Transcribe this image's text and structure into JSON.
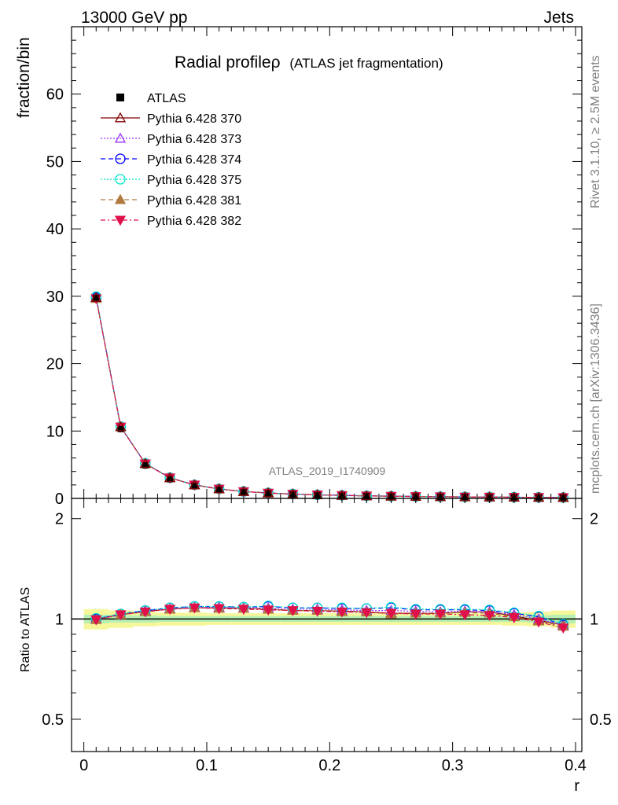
{
  "header": {
    "left": "13000 GeV pp",
    "right": "Jets"
  },
  "side_labels": {
    "rivet": "Rivet 3.1.10, ≥ 2.5M events",
    "mcplots": "mcplots.cern.ch [arXiv:1306.3436]"
  },
  "watermark": "ATLAS_2019_I1740909",
  "chart_data": [
    {
      "type": "line",
      "title_main": "Radial profileρ",
      "title_sub": "(ATLAS jet fragmentation)",
      "ylabel": "fraction/bin",
      "ylim": [
        0,
        70
      ],
      "yticks": [
        0,
        10,
        20,
        30,
        40,
        50,
        60
      ],
      "xlim": [
        -0.01,
        0.4
      ],
      "x": [
        0.01,
        0.03,
        0.05,
        0.07,
        0.09,
        0.11,
        0.13,
        0.15,
        0.17,
        0.19,
        0.21,
        0.23,
        0.25,
        0.27,
        0.29,
        0.31,
        0.33,
        0.35,
        0.37,
        0.39
      ],
      "atlas": [
        29.8,
        10.3,
        4.9,
        2.85,
        1.85,
        1.3,
        0.95,
        0.75,
        0.6,
        0.5,
        0.42,
        0.36,
        0.31,
        0.27,
        0.24,
        0.21,
        0.19,
        0.17,
        0.15,
        0.14
      ],
      "legend": {
        "position": "top-left",
        "entries": [
          {
            "name": "ATLAS",
            "color": "#000000",
            "marker": "square-filled",
            "dash": "none"
          },
          {
            "name": "Pythia 6.428 370",
            "color": "#800000",
            "marker": "triangle-up-open",
            "dash": "solid"
          },
          {
            "name": "Pythia 6.428 373",
            "color": "#9933ff",
            "marker": "triangle-up-open",
            "dash": "dotted"
          },
          {
            "name": "Pythia 6.428 374",
            "color": "#0000ff",
            "marker": "circle-open",
            "dash": "dashed"
          },
          {
            "name": "Pythia 6.428 375",
            "color": "#00e5c8",
            "marker": "circle-open",
            "dash": "dotted"
          },
          {
            "name": "Pythia 6.428 381",
            "color": "#b07a40",
            "marker": "triangle-up-filled",
            "dash": "dashed"
          },
          {
            "name": "Pythia 6.428 382",
            "color": "#e0104a",
            "marker": "triangle-down-filled",
            "dash": "dashdot"
          }
        ]
      }
    },
    {
      "type": "line",
      "ylabel": "Ratio to ATLAS",
      "xlabel": "r",
      "ylim": [
        0.4,
        2.3
      ],
      "yticks": [
        0.5,
        1,
        2
      ],
      "ytick_labels": [
        "0.5",
        "1",
        "2"
      ],
      "xlim": [
        -0.01,
        0.4
      ],
      "xticks": [
        0,
        0.1,
        0.2,
        0.3,
        0.4
      ],
      "xtick_labels": [
        "0",
        "0.1",
        "0.2",
        "0.3",
        "0.4"
      ],
      "x": [
        0.01,
        0.03,
        0.05,
        0.07,
        0.09,
        0.11,
        0.13,
        0.15,
        0.17,
        0.19,
        0.21,
        0.23,
        0.25,
        0.27,
        0.29,
        0.31,
        0.33,
        0.35,
        0.37,
        0.39
      ],
      "band_stat": [
        0.03,
        0.025,
        0.025,
        0.02,
        0.02,
        0.02,
        0.02,
        0.02,
        0.02,
        0.02,
        0.02,
        0.02,
        0.02,
        0.02,
        0.02,
        0.02,
        0.02,
        0.02,
        0.025,
        0.03
      ],
      "band_total": [
        0.07,
        0.06,
        0.05,
        0.045,
        0.045,
        0.04,
        0.04,
        0.04,
        0.04,
        0.04,
        0.04,
        0.04,
        0.04,
        0.04,
        0.04,
        0.04,
        0.04,
        0.045,
        0.05,
        0.06
      ],
      "series": [
        {
          "name": "Pythia 6.428 370",
          "values": [
            1.0,
            1.03,
            1.055,
            1.07,
            1.08,
            1.08,
            1.075,
            1.07,
            1.06,
            1.06,
            1.055,
            1.05,
            1.04,
            1.04,
            1.04,
            1.05,
            1.05,
            1.02,
            0.99,
            0.96
          ]
        },
        {
          "name": "Pythia 6.428 373",
          "values": [
            1.0,
            1.03,
            1.06,
            1.075,
            1.085,
            1.085,
            1.08,
            1.08,
            1.07,
            1.07,
            1.065,
            1.06,
            1.06,
            1.055,
            1.05,
            1.055,
            1.05,
            1.03,
            1.0,
            0.955
          ]
        },
        {
          "name": "Pythia 6.428 374",
          "values": [
            1.0,
            1.035,
            1.06,
            1.08,
            1.09,
            1.09,
            1.085,
            1.09,
            1.08,
            1.08,
            1.075,
            1.075,
            1.08,
            1.065,
            1.065,
            1.065,
            1.06,
            1.04,
            1.015,
            0.96
          ]
        },
        {
          "name": "Pythia 6.428 375",
          "values": [
            1.005,
            1.035,
            1.06,
            1.08,
            1.09,
            1.09,
            1.085,
            1.095,
            1.08,
            1.08,
            1.08,
            1.075,
            1.085,
            1.07,
            1.07,
            1.07,
            1.065,
            1.045,
            1.02,
            0.965
          ]
        },
        {
          "name": "Pythia 6.428 381",
          "values": [
            0.995,
            1.03,
            1.05,
            1.07,
            1.08,
            1.075,
            1.075,
            1.07,
            1.06,
            1.06,
            1.05,
            1.05,
            1.035,
            1.04,
            1.04,
            1.045,
            1.04,
            1.015,
            0.985,
            0.95
          ]
        },
        {
          "name": "Pythia 6.428 382",
          "values": [
            0.995,
            1.03,
            1.05,
            1.07,
            1.08,
            1.075,
            1.07,
            1.065,
            1.06,
            1.055,
            1.05,
            1.045,
            1.04,
            1.035,
            1.035,
            1.03,
            1.025,
            1.01,
            0.98,
            0.94
          ]
        }
      ]
    }
  ]
}
